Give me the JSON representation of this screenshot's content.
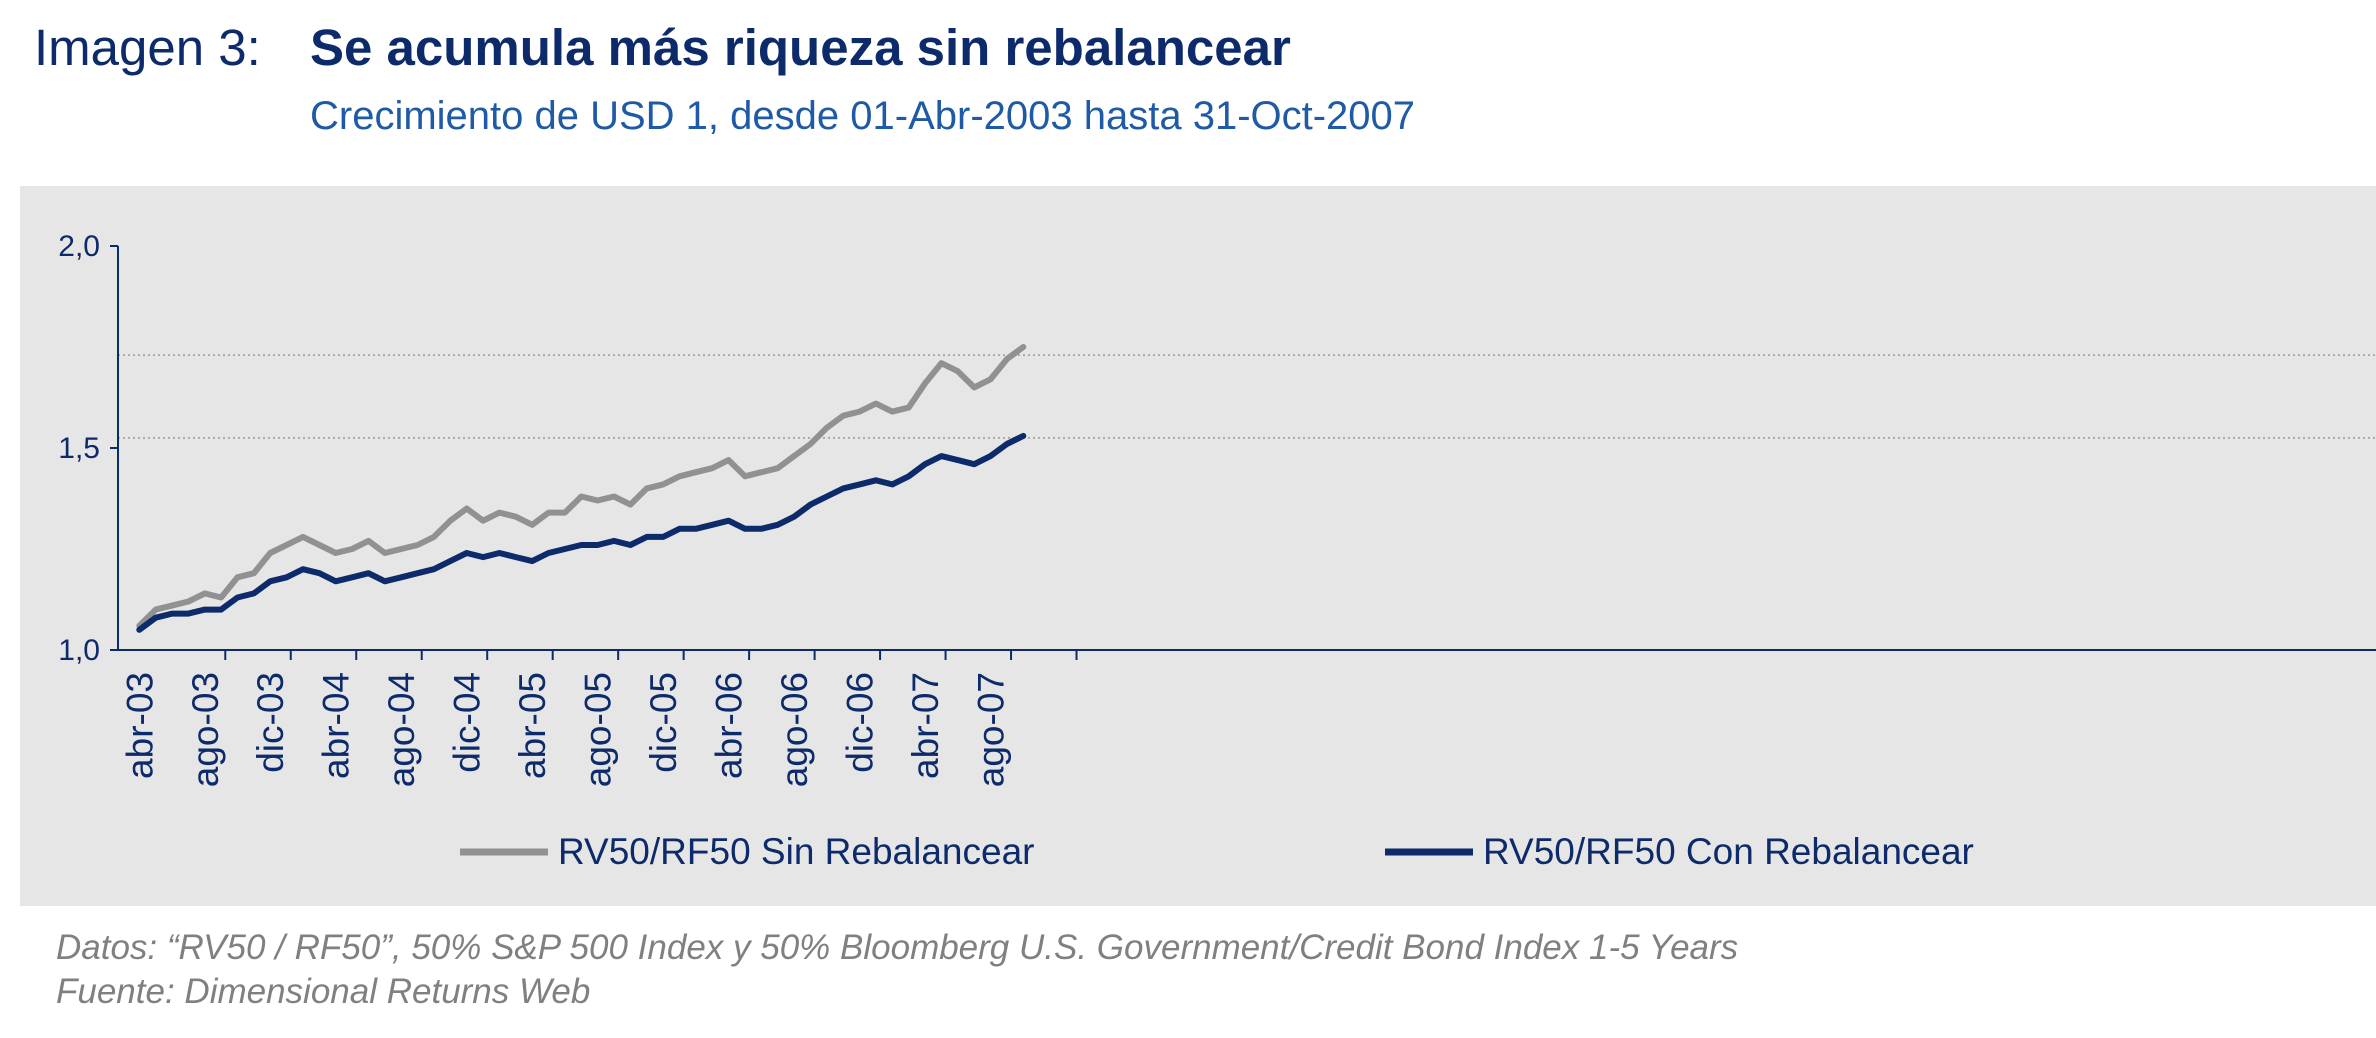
{
  "header": {
    "figure_label": "Imagen 3:",
    "title": "Se acumula más riqueza sin rebalancear",
    "subtitle": "Crecimiento de USD 1, desde 01-Abr-2003 hasta 31-Oct-2007"
  },
  "notes": {
    "data_line": "Datos: “RV50 / RF50”, 50% S&P 500 Index y 50% Bloomberg U.S. Government/Credit Bond Index 1-5 Years",
    "source_line": "Fuente: Dimensional Returns Web"
  },
  "colors": {
    "title": "#0d2a6b",
    "subtitle": "#1f5aa6",
    "panel": "#e6e6e6",
    "series_no_rebalance": "#919191",
    "series_rebalance": "#0d2a6b"
  },
  "chart_data": {
    "type": "line",
    "title": "",
    "xlabel": "",
    "ylabel": "",
    "ylim": [
      1.0,
      2.0
    ],
    "yticks": [
      "1,0",
      "1,5",
      "2,0"
    ],
    "ytick_values": [
      1.0,
      1.5,
      2.0
    ],
    "xtick_labels": [
      "abr-03",
      "ago-03",
      "dic-03",
      "abr-04",
      "ago-04",
      "dic-04",
      "abr-05",
      "ago-05",
      "dic-05",
      "abr-06",
      "ago-06",
      "dic-06",
      "abr-07",
      "ago-07"
    ],
    "x": [
      "abr-03",
      "may-03",
      "jun-03",
      "jul-03",
      "ago-03",
      "sep-03",
      "oct-03",
      "nov-03",
      "dic-03",
      "ene-04",
      "feb-04",
      "mar-04",
      "abr-04",
      "may-04",
      "jun-04",
      "jul-04",
      "ago-04",
      "sep-04",
      "oct-04",
      "nov-04",
      "dic-04",
      "ene-05",
      "feb-05",
      "mar-05",
      "abr-05",
      "may-05",
      "jun-05",
      "jul-05",
      "ago-05",
      "sep-05",
      "oct-05",
      "nov-05",
      "dic-05",
      "ene-06",
      "feb-06",
      "mar-06",
      "abr-06",
      "may-06",
      "jun-06",
      "jul-06",
      "ago-06",
      "sep-06",
      "oct-06",
      "nov-06",
      "dic-06",
      "ene-07",
      "feb-07",
      "mar-07",
      "abr-07",
      "may-07",
      "jun-07",
      "jul-07",
      "ago-07",
      "sep-07",
      "oct-07"
    ],
    "grid": "horizontal dotted",
    "legend_position": "bottom",
    "series": [
      {
        "name": "RV50/RF50 Sin Rebalancear",
        "color": "#919191",
        "values": [
          1.06,
          1.1,
          1.11,
          1.12,
          1.14,
          1.13,
          1.18,
          1.19,
          1.24,
          1.26,
          1.28,
          1.26,
          1.24,
          1.25,
          1.27,
          1.24,
          1.25,
          1.26,
          1.28,
          1.32,
          1.35,
          1.32,
          1.34,
          1.33,
          1.31,
          1.34,
          1.34,
          1.38,
          1.37,
          1.38,
          1.36,
          1.4,
          1.41,
          1.43,
          1.44,
          1.45,
          1.47,
          1.43,
          1.44,
          1.45,
          1.48,
          1.51,
          1.55,
          1.58,
          1.59,
          1.61,
          1.59,
          1.6,
          1.66,
          1.71,
          1.69,
          1.65,
          1.67,
          1.72,
          1.75
        ]
      },
      {
        "name": "RV50/RF50 Con Rebalancear",
        "color": "#0d2a6b",
        "values": [
          1.05,
          1.08,
          1.09,
          1.09,
          1.1,
          1.1,
          1.13,
          1.14,
          1.17,
          1.18,
          1.2,
          1.19,
          1.17,
          1.18,
          1.19,
          1.17,
          1.18,
          1.19,
          1.2,
          1.22,
          1.24,
          1.23,
          1.24,
          1.23,
          1.22,
          1.24,
          1.25,
          1.26,
          1.26,
          1.27,
          1.26,
          1.28,
          1.28,
          1.3,
          1.3,
          1.31,
          1.32,
          1.3,
          1.3,
          1.31,
          1.33,
          1.36,
          1.38,
          1.4,
          1.41,
          1.42,
          1.41,
          1.43,
          1.46,
          1.48,
          1.47,
          1.46,
          1.48,
          1.51,
          1.53
        ]
      }
    ],
    "reference_lines": [
      1.73,
      1.525
    ]
  }
}
